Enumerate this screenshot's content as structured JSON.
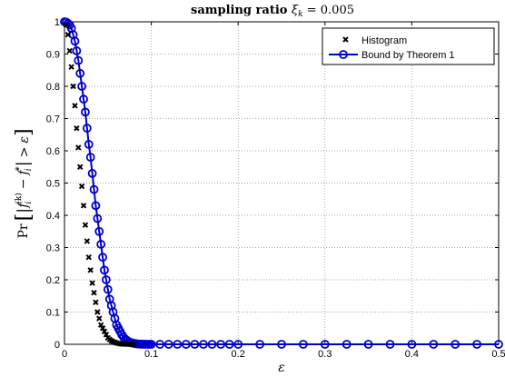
{
  "chart_data": {
    "type": "scatter",
    "title": "sampling ratio ξ_k = 0.005",
    "title_parts": {
      "bold": "sampling ratio ",
      "math": "ξ",
      "sub": "k",
      "rest": " = 0.005"
    },
    "xlabel": "ε",
    "ylabel": "Pr[ |f_i^(k) − f_i^*| > ε ]",
    "ylabel_parts": {
      "pr": "Pr",
      "open": "[",
      "f": "f",
      "sub_i": "i",
      "sup_k": "(k)",
      "minus": "−",
      "star": "*",
      "gt": ">",
      "eps": "ε",
      "close": "]"
    },
    "xlim": [
      0,
      0.5
    ],
    "ylim": [
      0,
      1
    ],
    "xticks": [
      "0",
      "0.1",
      "0.2",
      "0.3",
      "0.4",
      "0.5"
    ],
    "yticks": [
      "0",
      "0.1",
      "0.2",
      "0.3",
      "0.4",
      "0.5",
      "0.6",
      "0.7",
      "0.8",
      "0.9",
      "1"
    ],
    "grid": true,
    "legend_position": "top-right",
    "series": [
      {
        "name": "Histogram",
        "marker": "x",
        "color": "#000000",
        "x": [
          0.002,
          0.004,
          0.006,
          0.008,
          0.01,
          0.012,
          0.014,
          0.016,
          0.018,
          0.02,
          0.022,
          0.024,
          0.026,
          0.028,
          0.03,
          0.032,
          0.034,
          0.036,
          0.038,
          0.04,
          0.042,
          0.044,
          0.046,
          0.048,
          0.05,
          0.052,
          0.054,
          0.056,
          0.058,
          0.06,
          0.062,
          0.064,
          0.066,
          0.068,
          0.07,
          0.072,
          0.074,
          0.076,
          0.078,
          0.08
        ],
        "y": [
          0.99,
          0.96,
          0.91,
          0.86,
          0.8,
          0.74,
          0.67,
          0.61,
          0.55,
          0.49,
          0.43,
          0.37,
          0.32,
          0.27,
          0.23,
          0.19,
          0.16,
          0.13,
          0.1,
          0.08,
          0.06,
          0.05,
          0.04,
          0.03,
          0.02,
          0.015,
          0.011,
          0.008,
          0.006,
          0.004,
          0.003,
          0.002,
          0.001,
          0.001,
          0.0005,
          0.0003,
          0.0002,
          0.0001,
          0.0,
          0.0
        ]
      },
      {
        "name": "Bound by Theorem 1",
        "marker": "o",
        "color": "#0000cc",
        "x": [
          0.0,
          0.002,
          0.004,
          0.006,
          0.008,
          0.01,
          0.012,
          0.014,
          0.016,
          0.018,
          0.02,
          0.022,
          0.024,
          0.026,
          0.028,
          0.03,
          0.032,
          0.034,
          0.036,
          0.038,
          0.04,
          0.042,
          0.044,
          0.046,
          0.048,
          0.05,
          0.052,
          0.054,
          0.056,
          0.058,
          0.06,
          0.062,
          0.064,
          0.066,
          0.068,
          0.07,
          0.072,
          0.074,
          0.076,
          0.078,
          0.08,
          0.082,
          0.084,
          0.086,
          0.088,
          0.09,
          0.092,
          0.094,
          0.096,
          0.098,
          0.1,
          0.11,
          0.12,
          0.13,
          0.14,
          0.15,
          0.16,
          0.17,
          0.18,
          0.19,
          0.2,
          0.225,
          0.25,
          0.275,
          0.3,
          0.325,
          0.35,
          0.375,
          0.4,
          0.425,
          0.45,
          0.475,
          0.5
        ],
        "y": [
          1.0,
          0.999,
          0.995,
          0.99,
          0.98,
          0.96,
          0.94,
          0.91,
          0.88,
          0.84,
          0.8,
          0.76,
          0.72,
          0.67,
          0.62,
          0.58,
          0.53,
          0.48,
          0.43,
          0.39,
          0.35,
          0.31,
          0.27,
          0.23,
          0.2,
          0.17,
          0.14,
          0.12,
          0.1,
          0.08,
          0.06,
          0.05,
          0.04,
          0.03,
          0.022,
          0.016,
          0.012,
          0.008,
          0.006,
          0.004,
          0.003,
          0.002,
          0.0013,
          0.0008,
          0.0005,
          0.0003,
          0.0002,
          0.0001,
          0.0,
          0.0,
          0.0,
          0.0,
          0.0,
          0.0,
          0.0,
          0.0,
          0.0,
          0.0,
          0.0,
          0.0,
          0.0,
          0.0,
          0.0,
          0.0,
          0.0,
          0.0,
          0.0,
          0.0,
          0.0,
          0.0,
          0.0,
          0.0,
          0.0
        ]
      }
    ]
  }
}
